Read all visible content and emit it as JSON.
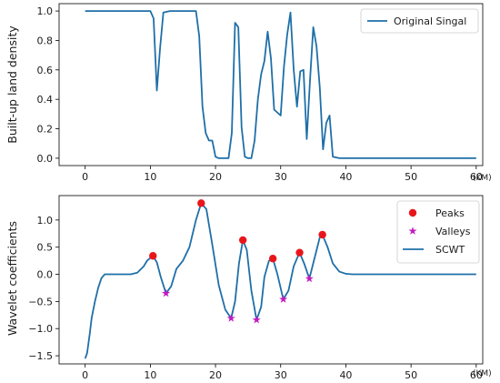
{
  "chart_data": [
    {
      "type": "line",
      "ylabel": "Built-up land density",
      "x_unit_label": "(KM)",
      "xlim": [
        -4,
        61
      ],
      "ylim": [
        -0.05,
        1.05
      ],
      "xticks": [
        0,
        10,
        20,
        30,
        40,
        50,
        60
      ],
      "yticks": [
        0.0,
        0.2,
        0.4,
        0.6,
        0.8,
        1.0
      ],
      "ytick_labels": [
        "0.0",
        "0.2",
        "0.4",
        "0.6",
        "0.8",
        "1.0"
      ],
      "legend_position": "top-right",
      "color": "#1f6fa8",
      "series": [
        {
          "name": "Original Singal",
          "x": [
            0,
            10,
            10.5,
            11,
            11.5,
            12,
            13,
            17,
            17.5,
            18,
            18.5,
            19,
            19.5,
            20,
            20.5,
            21,
            22,
            22.5,
            23,
            23.5,
            24,
            24.5,
            25,
            25.5,
            26,
            26.5,
            27,
            27.5,
            28,
            28.5,
            29,
            29.5,
            30,
            30.5,
            31,
            31.5,
            32,
            32.5,
            33,
            33.5,
            34,
            34.5,
            35,
            35.5,
            36,
            36.5,
            37,
            37.5,
            38,
            39,
            60
          ],
          "values": [
            1.0,
            1.0,
            0.95,
            0.46,
            0.75,
            0.99,
            1.0,
            1.0,
            0.83,
            0.35,
            0.17,
            0.12,
            0.12,
            0.01,
            0.0,
            0.0,
            0.0,
            0.17,
            0.92,
            0.89,
            0.21,
            0.01,
            0.0,
            0.0,
            0.12,
            0.4,
            0.57,
            0.66,
            0.86,
            0.68,
            0.33,
            0.31,
            0.29,
            0.62,
            0.84,
            0.99,
            0.6,
            0.35,
            0.59,
            0.6,
            0.13,
            0.53,
            0.89,
            0.76,
            0.48,
            0.06,
            0.24,
            0.29,
            0.01,
            0.0,
            0.0
          ]
        }
      ]
    },
    {
      "type": "line",
      "ylabel": "Wavelet coefficients",
      "x_unit_label": "(KM)",
      "xlim": [
        -4,
        61
      ],
      "ylim": [
        -1.65,
        1.45
      ],
      "xticks": [
        0,
        10,
        20,
        30,
        40,
        50,
        60
      ],
      "yticks": [
        -1.5,
        -1.0,
        -0.5,
        0.0,
        0.5,
        1.0
      ],
      "ytick_labels": [
        "−1.5",
        "−1.0",
        "−0.5",
        "0.0",
        "0.5",
        "1.0"
      ],
      "legend_position": "top-right",
      "series": [
        {
          "name": "Peaks",
          "kind": "markers",
          "marker": "circle",
          "color": "#e8161b",
          "x": [
            10.4,
            17.8,
            24.2,
            28.8,
            32.9,
            36.4
          ],
          "values": [
            0.34,
            1.31,
            0.63,
            0.29,
            0.4,
            0.73
          ]
        },
        {
          "name": "Valleys",
          "kind": "markers",
          "marker": "star",
          "color": "#c21bc2",
          "x": [
            12.4,
            22.4,
            26.3,
            30.4,
            34.4
          ],
          "values": [
            -0.35,
            -0.81,
            -0.84,
            -0.46,
            -0.08
          ]
        },
        {
          "name": "SCWT",
          "kind": "line",
          "color": "#1f6fa8",
          "x": [
            0,
            0.3,
            0.7,
            1.0,
            1.5,
            2.0,
            2.5,
            3.0,
            4.0,
            5.0,
            7.0,
            8.0,
            9.0,
            9.5,
            10.4,
            11.0,
            11.6,
            12.4,
            13.2,
            14.0,
            15.0,
            16.0,
            17.0,
            17.8,
            18.6,
            19.5,
            20.5,
            21.5,
            22.4,
            23.0,
            23.6,
            24.2,
            24.8,
            25.5,
            26.3,
            27.0,
            27.5,
            28.2,
            28.8,
            29.5,
            30.4,
            31.2,
            32.0,
            32.9,
            33.6,
            34.4,
            35.2,
            36.0,
            36.4,
            37.2,
            38.0,
            39.0,
            40.0,
            41.0,
            43.0,
            60.0
          ],
          "values": [
            -1.55,
            -1.45,
            -1.1,
            -0.8,
            -0.5,
            -0.25,
            -0.07,
            0.0,
            0.0,
            0.0,
            0.0,
            0.03,
            0.15,
            0.25,
            0.34,
            0.22,
            -0.05,
            -0.35,
            -0.22,
            0.1,
            0.25,
            0.5,
            1.0,
            1.31,
            1.2,
            0.55,
            -0.2,
            -0.65,
            -0.81,
            -0.5,
            0.2,
            0.63,
            0.45,
            -0.3,
            -0.84,
            -0.6,
            -0.05,
            0.25,
            0.29,
            0.0,
            -0.46,
            -0.3,
            0.15,
            0.4,
            0.2,
            -0.08,
            0.3,
            0.68,
            0.73,
            0.5,
            0.2,
            0.05,
            0.01,
            0.0,
            0.0,
            0.0
          ]
        }
      ]
    }
  ]
}
